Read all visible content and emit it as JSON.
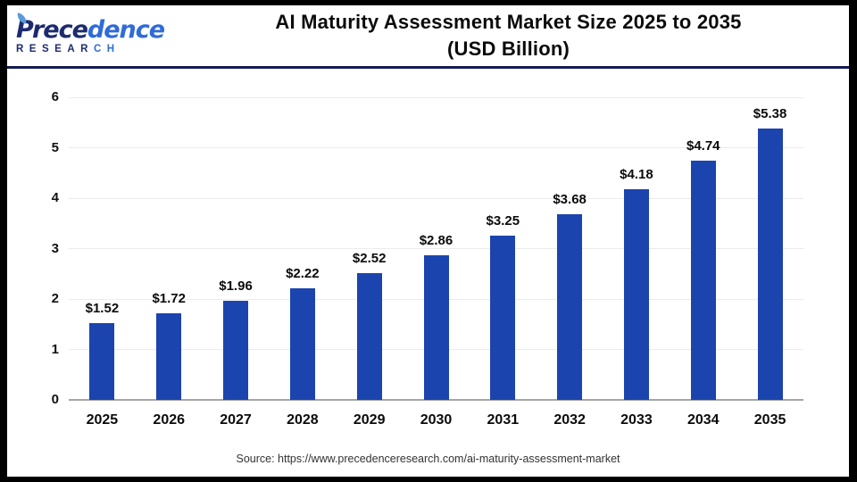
{
  "header": {
    "logo": {
      "name_dark": "Prece",
      "name_light": "dence",
      "research_dark": "RESEAR",
      "research_light": "CH",
      "navy": "#1d2b6e",
      "blue": "#2f6bd9"
    },
    "title_line1": "AI Maturity Assessment Market Size 2025 to 2035",
    "title_line2": "(USD Billion)"
  },
  "chart_data": {
    "type": "bar",
    "title": "AI Maturity Assessment Market Size 2025 to 2035 (USD Billion)",
    "categories": [
      "2025",
      "2026",
      "2027",
      "2028",
      "2029",
      "2030",
      "2031",
      "2032",
      "2033",
      "2034",
      "2035"
    ],
    "values": [
      1.52,
      1.72,
      1.96,
      2.22,
      2.52,
      2.86,
      3.25,
      3.68,
      4.18,
      4.74,
      5.38
    ],
    "value_labels": [
      "$1.52",
      "$1.72",
      "$1.96",
      "$2.22",
      "$2.52",
      "$2.86",
      "$3.25",
      "$3.68",
      "$4.18",
      "$4.74",
      "$5.38"
    ],
    "xlabel": "",
    "ylabel": "",
    "ylim": [
      0,
      6
    ],
    "yticks": [
      0,
      1,
      2,
      3,
      4,
      5,
      6
    ],
    "grid": true,
    "legend": false,
    "bar_color": "#1c44ae"
  },
  "footer": {
    "source": "Source: https://www.precedenceresearch.com/ai-maturity-assessment-market"
  }
}
